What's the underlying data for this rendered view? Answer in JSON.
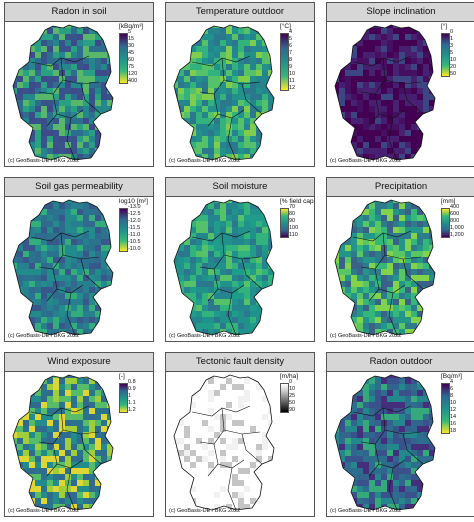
{
  "credit": "(c) GeoBasis-DE / BKG 2022",
  "panels": [
    {
      "title": "Radon in soil",
      "unit": "[kBq/m³]",
      "ticks": [
        "5",
        "15",
        "30",
        "45",
        "60",
        "75",
        "120",
        "400"
      ],
      "colors": [
        "#440154",
        "#31688e",
        "#21918c",
        "#35b779",
        "#fde725"
      ],
      "palette": [
        "#3b528b",
        "#2c728e",
        "#21918c",
        "#28ae80",
        "#5ec962",
        "#3e4a89"
      ]
    },
    {
      "title": "Temperature outdoor",
      "unit": "[°C]",
      "ticks": [
        "4",
        "5",
        "6",
        "7",
        "8",
        "9",
        "10",
        "11",
        "12"
      ],
      "colors": [
        "#440154",
        "#31688e",
        "#21918c",
        "#35b779",
        "#fde725"
      ],
      "palette": [
        "#21918c",
        "#35b779",
        "#5ec962",
        "#2c728e",
        "#90d743",
        "#26828e"
      ]
    },
    {
      "title": "Slope inclination",
      "unit": "[°]",
      "ticks": [
        "0",
        "1",
        "3",
        "5",
        "10",
        "20",
        "50"
      ],
      "colors": [
        "#440154",
        "#31688e",
        "#21918c",
        "#35b779",
        "#fde725"
      ],
      "palette": [
        "#440154",
        "#471365",
        "#482475",
        "#3b528b",
        "#440154",
        "#482878"
      ]
    },
    {
      "title": "Soil gas permeability",
      "unit": "log10 [m²]",
      "ticks": [
        "-13.0",
        "-12.5",
        "-12.0",
        "-11.5",
        "-11.0",
        "-10.5",
        "-10.0"
      ],
      "colors": [
        "#440154",
        "#31688e",
        "#21918c",
        "#35b779",
        "#fde725"
      ],
      "palette": [
        "#2c728e",
        "#31688e",
        "#26828e",
        "#3b528b",
        "#21918c",
        "#35b779"
      ]
    },
    {
      "title": "Soil moisture",
      "unit": "[% field capacity]",
      "ticks": [
        "70",
        "80",
        "90",
        "100",
        "110"
      ],
      "colors": [
        "#fde725",
        "#35b779",
        "#21918c",
        "#31688e",
        "#440154"
      ],
      "palette": [
        "#21918c",
        "#26828e",
        "#35b779",
        "#2c728e",
        "#5ec962",
        "#1f9e89"
      ]
    },
    {
      "title": "Precipitation",
      "unit": "[mm]",
      "ticks": [
        "400",
        "600",
        "800",
        "1,000",
        "1,200"
      ],
      "colors": [
        "#fde725",
        "#35b779",
        "#21918c",
        "#31688e",
        "#440154"
      ],
      "palette": [
        "#35b779",
        "#5ec962",
        "#21918c",
        "#90d743",
        "#2c728e",
        "#3b528b"
      ]
    },
    {
      "title": "Wind exposure",
      "unit": "[-]",
      "ticks": [
        "0.8",
        "0.9",
        "1",
        "1.1",
        "1.2"
      ],
      "colors": [
        "#440154",
        "#31688e",
        "#21918c",
        "#35b779",
        "#fde725"
      ],
      "palette": [
        "#2c728e",
        "#21918c",
        "#5ec962",
        "#b5de2b",
        "#31688e",
        "#fde725"
      ]
    },
    {
      "title": "Tectonic fault density",
      "unit": "[m/ha]",
      "ticks": [
        "0",
        "10",
        "25",
        "50",
        "90"
      ],
      "colors": [
        "#ffffff",
        "#cccccc",
        "#888888",
        "#444444",
        "#000000"
      ],
      "palette": [
        "#ffffff",
        "#ffffff",
        "#ffffff",
        "#eeeeee",
        "#ffffff",
        "#bbbbbb"
      ]
    },
    {
      "title": "Radon outdoor",
      "unit": "[Bq/m³]",
      "ticks": [
        "4",
        "6",
        "8",
        "10",
        "12",
        "14",
        "16",
        "18"
      ],
      "colors": [
        "#440154",
        "#31688e",
        "#21918c",
        "#35b779",
        "#fde725"
      ],
      "palette": [
        "#3b528b",
        "#31688e",
        "#2c728e",
        "#21918c",
        "#35b779",
        "#482878"
      ]
    }
  ]
}
